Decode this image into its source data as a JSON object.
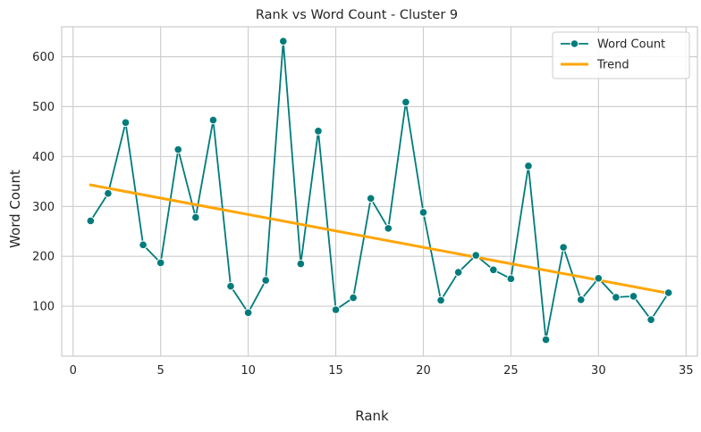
{
  "chart_data": {
    "type": "line",
    "title": "Rank vs Word Count - Cluster 9",
    "xlabel": "Rank",
    "ylabel": "Word Count",
    "xlim": [
      -0.65,
      35.65
    ],
    "ylim": [
      0,
      660
    ],
    "xticks": [
      0,
      5,
      10,
      15,
      20,
      25,
      30,
      35
    ],
    "yticks": [
      100,
      200,
      300,
      400,
      500,
      600
    ],
    "grid": true,
    "legend_position": "top-right",
    "x": [
      1,
      2,
      3,
      4,
      5,
      6,
      7,
      8,
      9,
      10,
      11,
      12,
      13,
      14,
      15,
      16,
      17,
      18,
      19,
      20,
      21,
      22,
      23,
      24,
      25,
      26,
      27,
      28,
      29,
      30,
      31,
      32,
      33,
      34
    ],
    "series": [
      {
        "name": "Word Count",
        "color": "#007b7b",
        "marker": "circle",
        "values": [
          271,
          326,
          468,
          223,
          187,
          414,
          278,
          473,
          140,
          87,
          152,
          631,
          185,
          451,
          93,
          117,
          316,
          256,
          509,
          288,
          112,
          168,
          202,
          173,
          155,
          381,
          33,
          218,
          113,
          156,
          118,
          120,
          73,
          127
        ]
      },
      {
        "name": "Trend",
        "color": "#ffa500",
        "x": [
          1,
          34
        ],
        "values": [
          343,
          126
        ]
      }
    ]
  }
}
